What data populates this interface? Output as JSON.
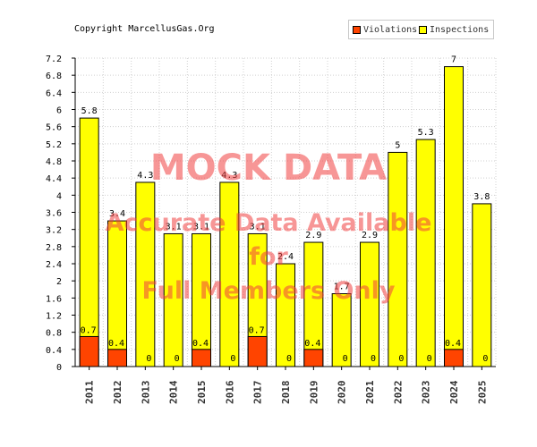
{
  "copyright": "Copyright MarcellusGas.Org",
  "legend": {
    "violations_label": "Violations",
    "inspections_label": "Inspections",
    "violations_color": "#ff4400",
    "inspections_color": "#ffff00"
  },
  "watermark": {
    "line1": "MOCK DATA",
    "line2": "Accurate Data Available",
    "line3": "for",
    "line4": "Full Members Only"
  },
  "chart_data": {
    "type": "bar",
    "categories": [
      "2011",
      "2012",
      "2013",
      "2014",
      "2015",
      "2016",
      "2017",
      "2018",
      "2019",
      "2020",
      "2021",
      "2022",
      "2023",
      "2024",
      "2025"
    ],
    "series": [
      {
        "name": "Violations",
        "values": [
          0.7,
          0.4,
          0,
          0,
          0.4,
          0,
          0.7,
          0,
          0.4,
          0,
          0,
          0,
          0,
          0.4,
          0
        ],
        "color": "#ff4400"
      },
      {
        "name": "Inspections",
        "values": [
          5.8,
          3.4,
          4.3,
          3.1,
          3.1,
          4.3,
          3.1,
          2.4,
          2.9,
          1.7,
          2.9,
          5,
          5.3,
          7,
          3.8
        ],
        "color": "#ffff00"
      }
    ],
    "ylim": [
      0,
      7.2
    ],
    "yticks": [
      "0",
      "0.4",
      "0.8",
      "1.2",
      "1.6",
      "2",
      "2.4",
      "2.8",
      "3.2",
      "3.6",
      "4",
      "4.4",
      "4.8",
      "5.2",
      "5.6",
      "6",
      "6.4",
      "6.8",
      "7.2"
    ],
    "grid": true,
    "legend_position": "top-right",
    "title": "",
    "xlabel": "",
    "ylabel": ""
  }
}
